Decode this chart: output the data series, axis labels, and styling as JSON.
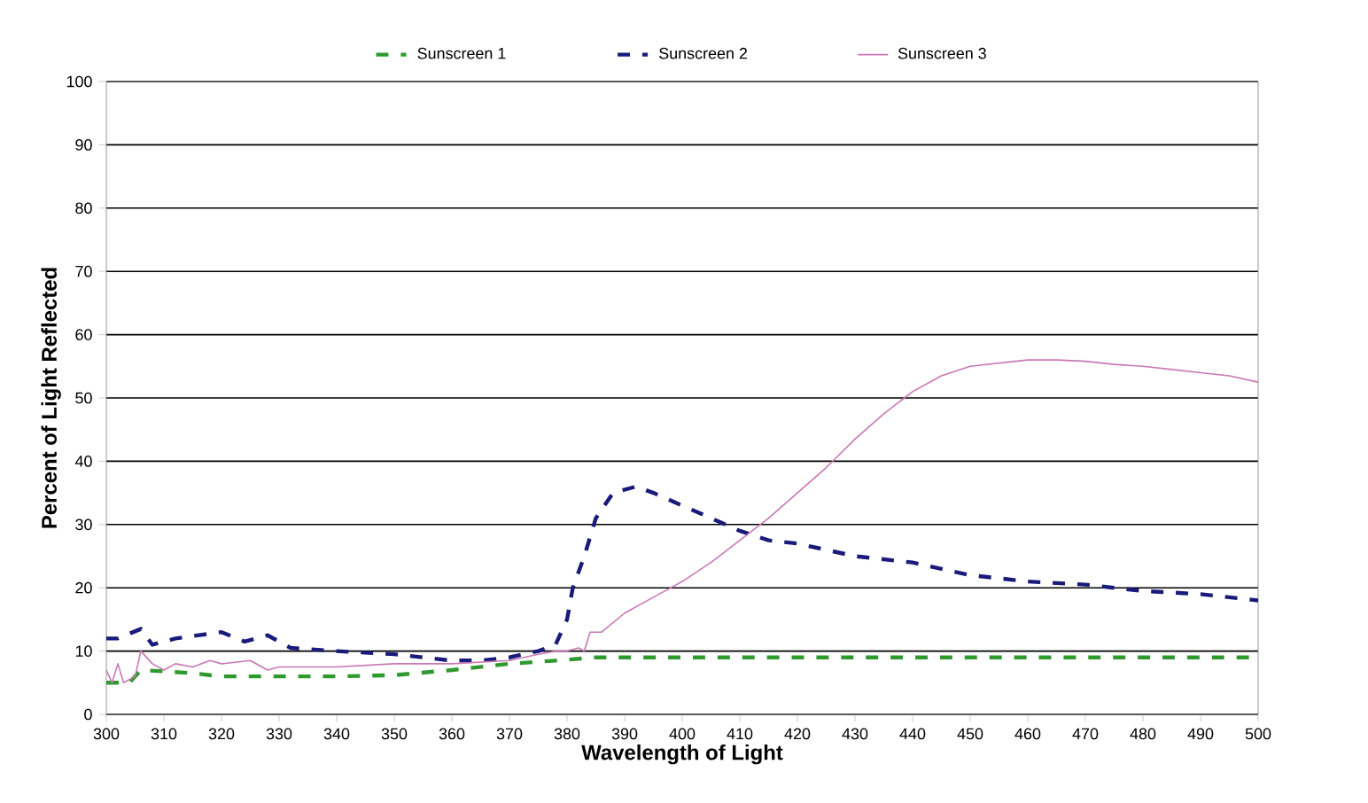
{
  "chart_data": {
    "type": "line",
    "xlabel": "Wavelength of Light",
    "ylabel": "Percent of Light Reflected",
    "xlim": [
      300,
      500
    ],
    "xticks": [
      300,
      310,
      320,
      330,
      340,
      350,
      360,
      370,
      380,
      390,
      400,
      410,
      420,
      430,
      440,
      450,
      460,
      470,
      480,
      490,
      500
    ],
    "ylim": [
      0,
      100
    ],
    "yticks": [
      0,
      10,
      20,
      30,
      40,
      50,
      60,
      70,
      80,
      90,
      100
    ],
    "grid": "y",
    "legend": "top",
    "marker": "none",
    "series": [
      {
        "name": "Sunscreen 1",
        "color": "#2e9a2e",
        "line_style": "dashed",
        "x": [
          300,
          302,
          304,
          306,
          310,
          315,
          320,
          330,
          340,
          350,
          360,
          370,
          378,
          385,
          400,
          450,
          500
        ],
        "values": [
          5,
          5,
          5,
          7,
          6.8,
          6.5,
          6,
          6,
          6,
          6.2,
          7,
          8,
          8.5,
          9,
          9,
          9,
          9
        ]
      },
      {
        "name": "Sunscreen 2",
        "color": "#1a1a7a",
        "line_style": "dashed",
        "x": [
          300,
          302,
          306,
          308,
          312,
          316,
          320,
          324,
          328,
          332,
          340,
          350,
          355,
          360,
          365,
          370,
          375,
          378,
          380,
          381,
          383,
          385,
          388,
          392,
          395,
          400,
          405,
          410,
          415,
          420,
          430,
          440,
          450,
          460,
          470,
          480,
          490,
          500
        ],
        "values": [
          12,
          12,
          13.5,
          11,
          12,
          12.5,
          13,
          11.5,
          12.5,
          10.5,
          10,
          9.5,
          9,
          8.5,
          8.5,
          9,
          10,
          11,
          15,
          20,
          25,
          31,
          35,
          36,
          35,
          33,
          31,
          29,
          27.5,
          27,
          25,
          24,
          22,
          21,
          20.5,
          19.5,
          19,
          18
        ]
      },
      {
        "name": "Sunscreen 3",
        "color": "#c878b4",
        "line_style": "solid",
        "x": [
          300,
          301,
          302,
          303,
          305,
          306,
          308,
          310,
          312,
          315,
          318,
          320,
          325,
          328,
          330,
          335,
          340,
          350,
          360,
          370,
          375,
          378,
          380,
          382,
          383,
          384,
          386,
          390,
          395,
          400,
          405,
          410,
          415,
          420,
          425,
          430,
          435,
          440,
          445,
          450,
          455,
          460,
          465,
          470,
          475,
          480,
          485,
          490,
          495,
          500
        ],
        "values": [
          7,
          5,
          8,
          5,
          6,
          10,
          8,
          7,
          8,
          7.5,
          8.5,
          8,
          8.5,
          7,
          7.5,
          7.5,
          7.5,
          8,
          8,
          8.5,
          9.5,
          10,
          10,
          10.5,
          10,
          13,
          13,
          16,
          18.5,
          21,
          24,
          27.5,
          31,
          35,
          39,
          43.5,
          47.5,
          51,
          53.5,
          55,
          55.5,
          56,
          56,
          55.8,
          55.3,
          55,
          54.5,
          54,
          53.5,
          52.5
        ]
      }
    ]
  }
}
